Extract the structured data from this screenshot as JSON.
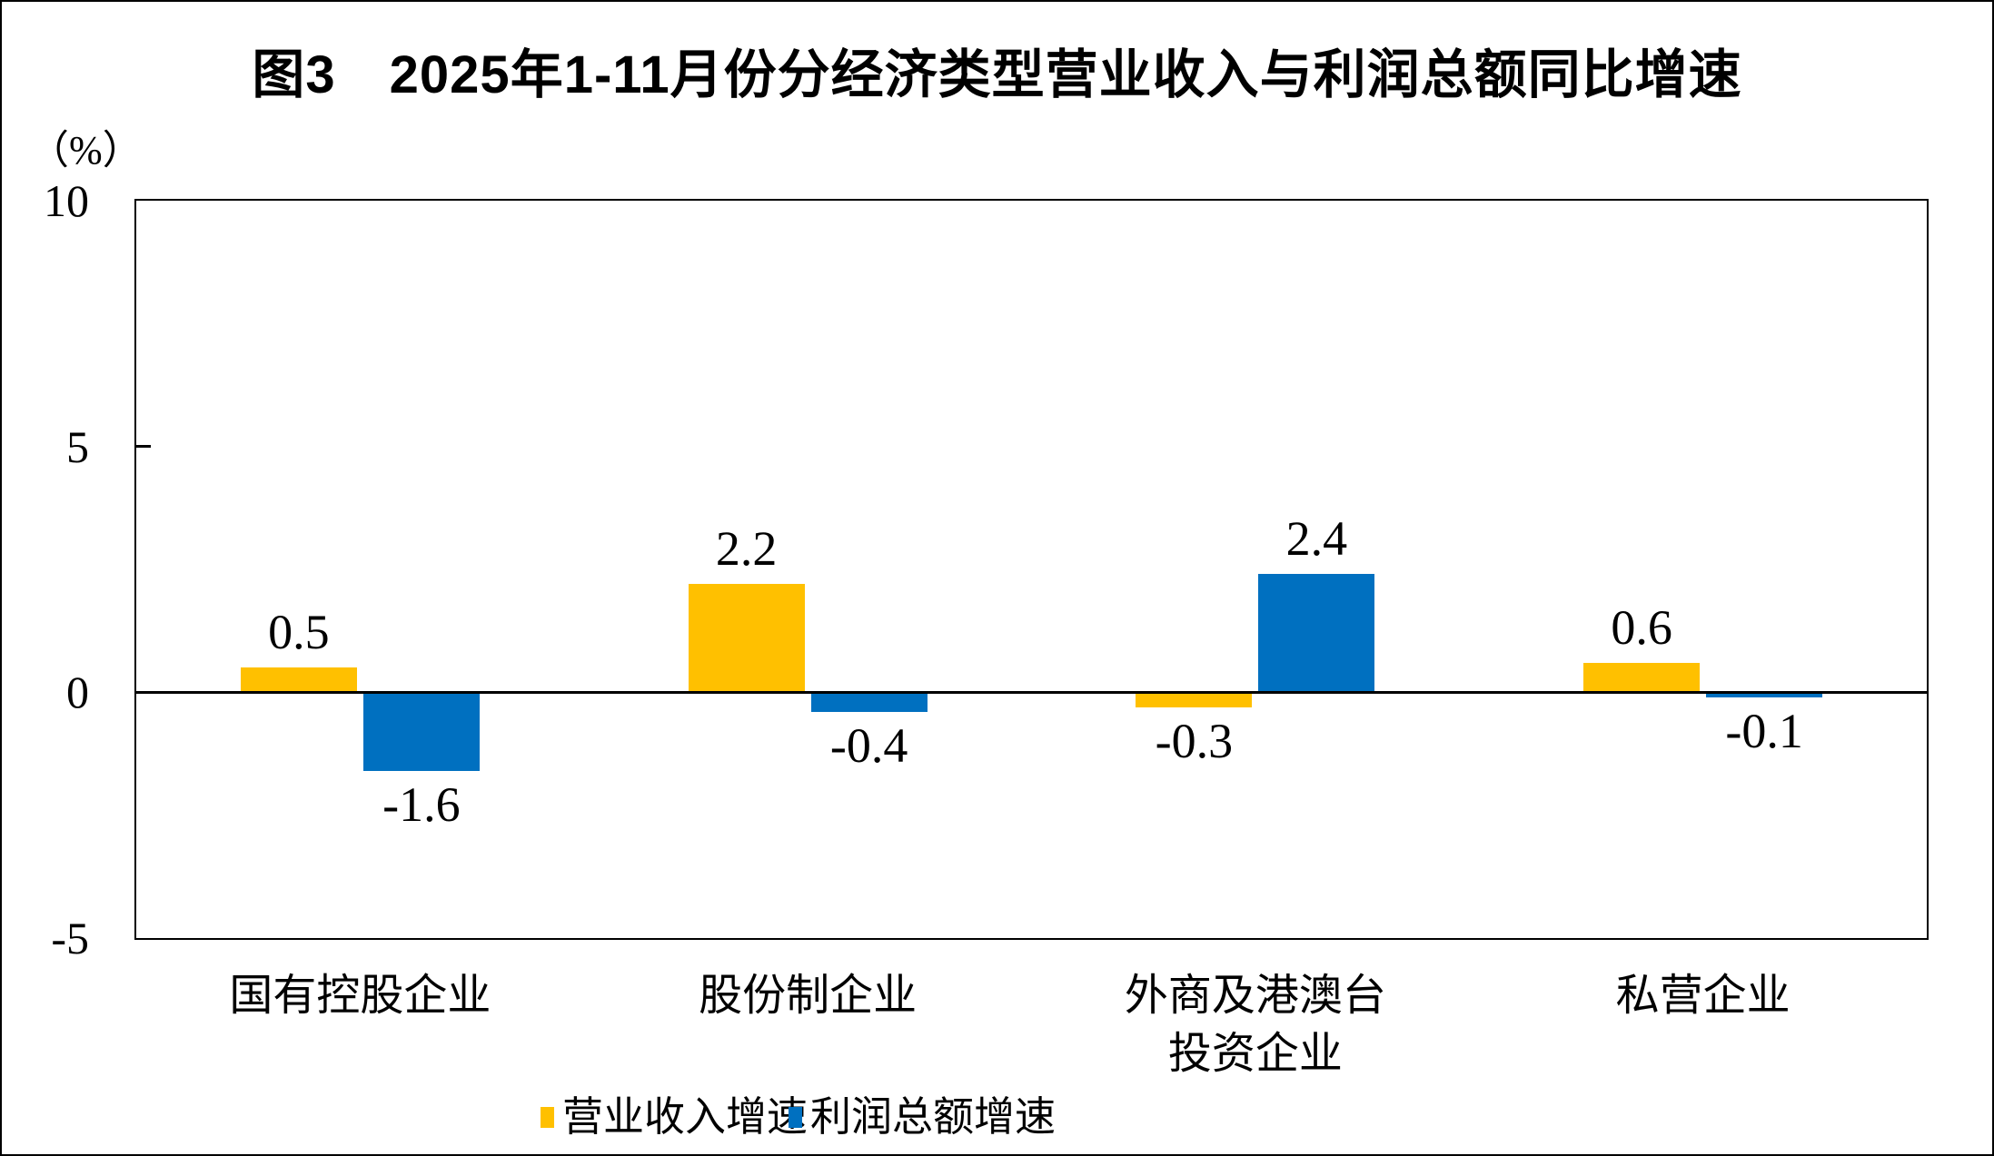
{
  "title": "图3　2025年1-11月份分经济类型营业收入与利润总额同比增速",
  "y_axis": {
    "unit_label": "（%）"
  },
  "chart_data": {
    "type": "bar",
    "title": "图3　2025年1-11月份分经济类型营业收入与利润总额同比增速",
    "ylabel": "（%）",
    "xlabel": "",
    "ylim": [
      -5,
      10
    ],
    "yticks": [
      10,
      5,
      0,
      -5
    ],
    "grid": false,
    "legend_position": "bottom",
    "categories": [
      "国有控股企业",
      "股份制企业",
      "外商及港澳台\n投资企业",
      "私营企业"
    ],
    "series": [
      {
        "name": "营业收入增速",
        "color": "#FFC000",
        "values": [
          0.5,
          2.2,
          -0.3,
          0.6
        ]
      },
      {
        "name": "利润总额增速",
        "color": "#0070C0",
        "values": [
          -1.6,
          -0.4,
          2.4,
          -0.1
        ]
      }
    ]
  },
  "legend": {
    "items": [
      {
        "label": "营业收入增速",
        "color": "#FFC000"
      },
      {
        "label": "利润总额增速",
        "color": "#0070C0"
      }
    ]
  }
}
